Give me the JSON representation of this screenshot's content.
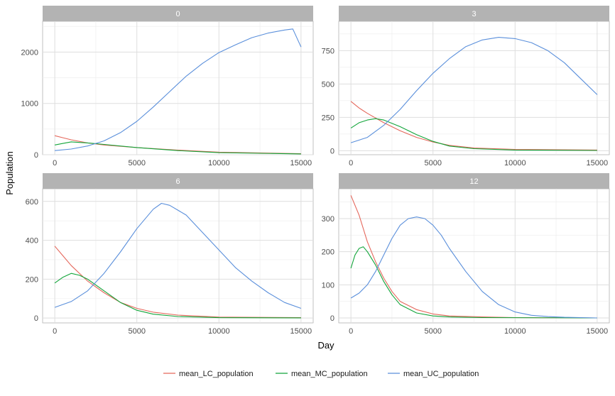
{
  "chart_data": {
    "type": "line",
    "facet_variable_values": [
      "0",
      "3",
      "6",
      "12"
    ],
    "xlabel": "Day",
    "ylabel": "Population",
    "x_ticks": [
      0,
      5000,
      10000,
      15000
    ],
    "xlim": [
      0,
      15000
    ],
    "grid": true,
    "legend_position": "bottom",
    "series_styles": [
      {
        "name": "mean_LC_population",
        "color": "#E5675B"
      },
      {
        "name": "mean_MC_population",
        "color": "#12A53A"
      },
      {
        "name": "mean_UC_population",
        "color": "#5A8FDB"
      }
    ],
    "panels": [
      {
        "label": "0",
        "ylim": [
          0,
          2600
        ],
        "y_ticks": [
          0,
          1000,
          2000
        ],
        "series": [
          {
            "name": "mean_LC_population",
            "x": [
              0,
              500,
              1000,
              2000,
              3000,
              5000,
              7500,
              10000,
              15000
            ],
            "values": [
              370,
              330,
              290,
              230,
              190,
              140,
              90,
              50,
              20
            ]
          },
          {
            "name": "mean_MC_population",
            "x": [
              0,
              500,
              1000,
              2000,
              3000,
              5000,
              7500,
              10000,
              15000
            ],
            "values": [
              190,
              220,
              250,
              230,
              200,
              140,
              80,
              40,
              15
            ]
          },
          {
            "name": "mean_UC_population",
            "x": [
              0,
              1000,
              2000,
              3000,
              4000,
              5000,
              6000,
              7000,
              8000,
              9000,
              10000,
              11000,
              12000,
              13000,
              14000,
              14500,
              15000
            ],
            "values": [
              80,
              110,
              170,
              270,
              430,
              650,
              930,
              1230,
              1530,
              1780,
              1990,
              2140,
              2280,
              2370,
              2430,
              2450,
              2100
            ]
          }
        ]
      },
      {
        "label": "3",
        "ylim": [
          -30,
          970
        ],
        "y_ticks": [
          0,
          250,
          500,
          750
        ],
        "series": [
          {
            "name": "mean_LC_population",
            "x": [
              0,
              500,
              1000,
              2000,
              3000,
              4000,
              5000,
              6000,
              7500,
              10000,
              15000
            ],
            "values": [
              370,
              320,
              280,
              210,
              150,
              100,
              65,
              40,
              20,
              10,
              5
            ]
          },
          {
            "name": "mean_MC_population",
            "x": [
              0,
              500,
              1000,
              1500,
              2000,
              3000,
              4000,
              5000,
              6000,
              7500,
              10000,
              15000
            ],
            "values": [
              170,
              210,
              230,
              240,
              230,
              180,
              120,
              70,
              35,
              15,
              5,
              2
            ]
          },
          {
            "name": "mean_UC_population",
            "x": [
              0,
              1000,
              2000,
              3000,
              4000,
              5000,
              6000,
              7000,
              8000,
              9000,
              10000,
              11000,
              12000,
              13000,
              14000,
              15000
            ],
            "values": [
              60,
              100,
              190,
              310,
              450,
              580,
              690,
              780,
              830,
              850,
              840,
              810,
              750,
              660,
              540,
              420
            ]
          }
        ]
      },
      {
        "label": "6",
        "ylim": [
          -25,
          665
        ],
        "y_ticks": [
          0,
          200,
          400,
          600
        ],
        "series": [
          {
            "name": "mean_LC_population",
            "x": [
              0,
              500,
              1000,
              2000,
              3000,
              4000,
              5000,
              6000,
              7500,
              10000,
              15000
            ],
            "values": [
              370,
              320,
              270,
              190,
              130,
              80,
              50,
              30,
              15,
              5,
              2
            ]
          },
          {
            "name": "mean_MC_population",
            "x": [
              0,
              500,
              1000,
              1500,
              2000,
              3000,
              4000,
              5000,
              6000,
              7500,
              10000,
              15000
            ],
            "values": [
              180,
              210,
              230,
              220,
              200,
              140,
              80,
              40,
              20,
              8,
              2,
              1
            ]
          },
          {
            "name": "mean_UC_population",
            "x": [
              0,
              1000,
              2000,
              3000,
              4000,
              5000,
              6000,
              6500,
              7000,
              8000,
              9000,
              10000,
              11000,
              12000,
              13000,
              14000,
              15000
            ],
            "values": [
              55,
              85,
              140,
              230,
              340,
              460,
              560,
              590,
              580,
              530,
              440,
              350,
              260,
              190,
              130,
              80,
              50
            ]
          }
        ]
      },
      {
        "label": "12",
        "ylim": [
          -15,
          390
        ],
        "y_ticks": [
          0,
          100,
          200,
          300
        ],
        "series": [
          {
            "name": "mean_LC_population",
            "x": [
              0,
              250,
              500,
              750,
              1000,
              1500,
              2000,
              2500,
              3000,
              4000,
              5000,
              6000,
              8000,
              10000,
              15000
            ],
            "values": [
              370,
              340,
              310,
              270,
              230,
              170,
              120,
              80,
              50,
              25,
              12,
              6,
              3,
              1,
              0
            ]
          },
          {
            "name": "mean_MC_population",
            "x": [
              0,
              250,
              500,
              750,
              1000,
              1500,
              2000,
              2500,
              3000,
              4000,
              5000,
              6000,
              8000,
              15000
            ],
            "values": [
              150,
              190,
              210,
              215,
              200,
              160,
              110,
              70,
              40,
              15,
              6,
              3,
              1,
              0
            ]
          },
          {
            "name": "mean_UC_population",
            "x": [
              0,
              500,
              1000,
              1500,
              2000,
              2500,
              3000,
              3500,
              4000,
              4500,
              5000,
              5500,
              6000,
              7000,
              8000,
              9000,
              10000,
              11000,
              12000,
              13000,
              14000,
              15000
            ],
            "values": [
              60,
              75,
              100,
              140,
              190,
              240,
              280,
              300,
              305,
              300,
              280,
              250,
              210,
              140,
              80,
              40,
              18,
              8,
              4,
              2,
              1,
              0
            ]
          }
        ]
      }
    ]
  }
}
